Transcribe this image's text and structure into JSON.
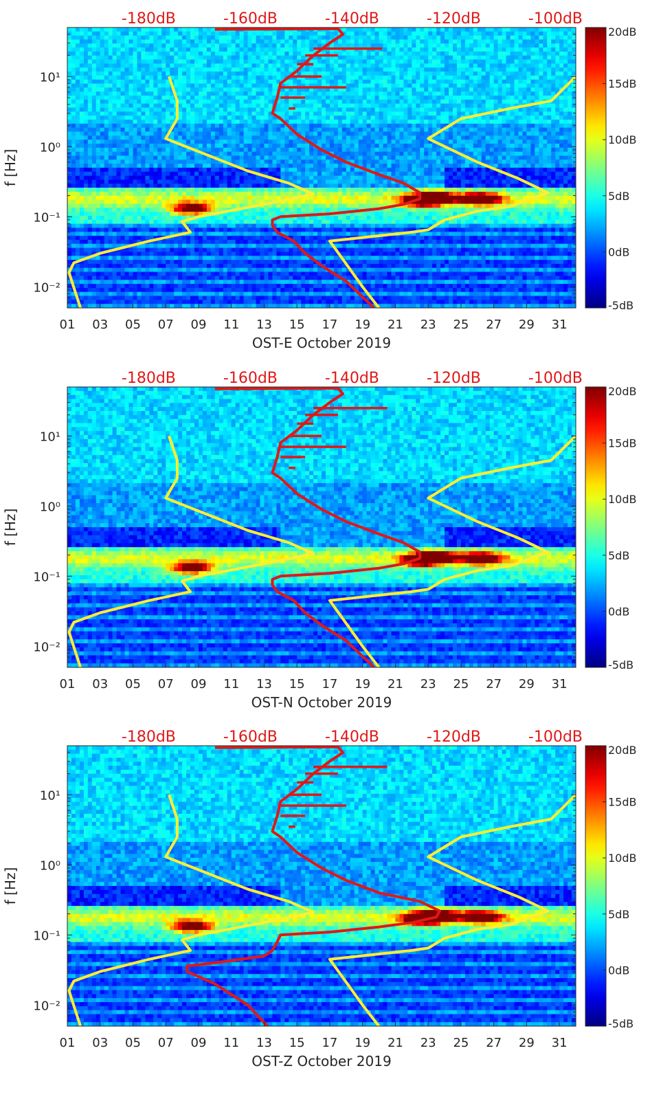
{
  "figure": {
    "colors": {
      "yellow_curve": "#ffee33",
      "red_curve": "#e01818",
      "top_labels": "#e01818",
      "axis": "#262626"
    },
    "colormap_name": "jet"
  },
  "chart_data": [
    {
      "type": "heatmap",
      "panel": "east",
      "title": "",
      "xlabel": "OST-E October 2019",
      "ylabel": "f [Hz]",
      "x_tick_labels": [
        "01",
        "03",
        "05",
        "07",
        "09",
        "11",
        "13",
        "15",
        "17",
        "19",
        "21",
        "23",
        "25",
        "27",
        "29",
        "31"
      ],
      "x_ticks": [
        1,
        3,
        5,
        7,
        9,
        11,
        13,
        15,
        17,
        19,
        21,
        23,
        25,
        27,
        29,
        31
      ],
      "xlim": [
        1,
        32
      ],
      "y_scale": "log",
      "ylim": [
        0.005,
        50
      ],
      "y_tick_labels": [
        "10⁻²",
        "10⁻¹",
        "10⁰",
        "10¹"
      ],
      "y_ticks": [
        0.01,
        0.1,
        1,
        10
      ],
      "top_axis_labels": [
        "-180dB",
        "-160dB",
        "-140dB",
        "-120dB",
        "-100dB"
      ],
      "top_axis_values": [
        -180,
        -160,
        -140,
        -120,
        -100
      ],
      "top_axis_positions_day": [
        8,
        18,
        28,
        38,
        48
      ],
      "colorbar": {
        "labels": [
          "20dB",
          "15dB",
          "10dB",
          "5dB",
          "0dB",
          "-5dB"
        ],
        "values": [
          20,
          15,
          10,
          5,
          0,
          -5
        ],
        "range": [
          -5,
          20
        ]
      },
      "series": [
        {
          "color": "yellow",
          "points": [
            [
              1.8,
              0.005
            ],
            [
              1.1,
              0.016
            ],
            [
              1.4,
              0.022
            ],
            [
              3,
              0.03
            ],
            [
              6,
              0.045
            ],
            [
              8.5,
              0.06
            ],
            [
              8,
              0.085
            ],
            [
              9,
              0.1
            ],
            [
              13,
              0.15
            ],
            [
              16,
              0.21
            ],
            [
              14.5,
              0.3
            ],
            [
              12,
              0.45
            ],
            [
              7,
              1.3
            ],
            [
              7.7,
              2.5
            ],
            [
              7.7,
              4.5
            ],
            [
              7.2,
              10
            ]
          ]
        },
        {
          "color": "yellow",
          "points": [
            [
              20,
              0.005
            ],
            [
              19,
              0.01
            ],
            [
              17,
              0.045
            ],
            [
              22,
              0.06
            ],
            [
              23,
              0.065
            ],
            [
              24,
              0.09
            ],
            [
              26,
              0.12
            ],
            [
              28,
              0.14
            ],
            [
              30.3,
              0.22
            ],
            [
              28.5,
              0.35
            ],
            [
              26,
              0.6
            ],
            [
              23,
              1.3
            ],
            [
              25,
              2.5
            ],
            [
              28,
              3.5
            ],
            [
              30.5,
              4.5
            ],
            [
              32,
              10
            ]
          ]
        },
        {
          "color": "red",
          "points": [
            [
              19.7,
              0.005
            ],
            [
              18,
              0.012
            ],
            [
              16.5,
              0.02
            ],
            [
              15.5,
              0.03
            ],
            [
              14.8,
              0.045
            ],
            [
              13.8,
              0.06
            ],
            [
              13.5,
              0.075
            ],
            [
              13.5,
              0.09
            ],
            [
              14,
              0.1
            ],
            [
              17,
              0.11
            ],
            [
              20,
              0.13
            ],
            [
              21.5,
              0.15
            ],
            [
              22.5,
              0.18
            ],
            [
              22.5,
              0.22
            ],
            [
              21.5,
              0.3
            ],
            [
              20,
              0.4
            ],
            [
              18,
              0.6
            ],
            [
              16.5,
              0.9
            ],
            [
              15,
              1.5
            ],
            [
              14,
              2.5
            ],
            [
              13.5,
              3
            ],
            [
              13.8,
              5
            ],
            [
              14,
              8
            ],
            [
              15,
              12
            ],
            [
              16,
              20
            ],
            [
              17,
              30
            ],
            [
              17.8,
              40
            ],
            [
              17.5,
              48
            ],
            [
              10,
              47
            ]
          ]
        }
      ],
      "red_spikes": [
        [
          14.5,
          3.5,
          14.9
        ],
        [
          14,
          5,
          15.5
        ],
        [
          14,
          7,
          18.0
        ],
        [
          14.5,
          10,
          16.5
        ],
        [
          15,
          15,
          16.0
        ],
        [
          15.5,
          20,
          17.5
        ],
        [
          16,
          25,
          20.2
        ]
      ]
    },
    {
      "type": "heatmap",
      "panel": "north",
      "title": "",
      "xlabel": "OST-N October 2019",
      "ylabel": "f [Hz]",
      "x_tick_labels": [
        "01",
        "03",
        "05",
        "07",
        "09",
        "11",
        "13",
        "15",
        "17",
        "19",
        "21",
        "23",
        "25",
        "27",
        "29",
        "31"
      ],
      "x_ticks": [
        1,
        3,
        5,
        7,
        9,
        11,
        13,
        15,
        17,
        19,
        21,
        23,
        25,
        27,
        29,
        31
      ],
      "xlim": [
        1,
        32
      ],
      "y_scale": "log",
      "ylim": [
        0.005,
        50
      ],
      "y_tick_labels": [
        "10⁻²",
        "10⁻¹",
        "10⁰",
        "10¹"
      ],
      "y_ticks": [
        0.01,
        0.1,
        1,
        10
      ],
      "top_axis_labels": [
        "-180dB",
        "-160dB",
        "-140dB",
        "-120dB",
        "-100dB"
      ],
      "top_axis_values": [
        -180,
        -160,
        -140,
        -120,
        -100
      ],
      "top_axis_positions_day": [
        8,
        18,
        28,
        38,
        48
      ],
      "colorbar": {
        "labels": [
          "20dB",
          "15dB",
          "10dB",
          "5dB",
          "0dB",
          "-5dB"
        ],
        "values": [
          20,
          15,
          10,
          5,
          0,
          -5
        ],
        "range": [
          -5,
          20
        ]
      },
      "series": [
        {
          "color": "yellow",
          "points": [
            [
              1.8,
              0.005
            ],
            [
              1.1,
              0.016
            ],
            [
              1.4,
              0.022
            ],
            [
              3,
              0.03
            ],
            [
              6,
              0.045
            ],
            [
              8.5,
              0.06
            ],
            [
              8,
              0.085
            ],
            [
              9,
              0.1
            ],
            [
              13,
              0.15
            ],
            [
              16,
              0.21
            ],
            [
              14.5,
              0.3
            ],
            [
              12,
              0.45
            ],
            [
              7,
              1.3
            ],
            [
              7.7,
              2.5
            ],
            [
              7.7,
              4.5
            ],
            [
              7.2,
              10
            ]
          ]
        },
        {
          "color": "yellow",
          "points": [
            [
              20,
              0.005
            ],
            [
              19,
              0.01
            ],
            [
              17,
              0.045
            ],
            [
              22,
              0.06
            ],
            [
              23,
              0.065
            ],
            [
              24,
              0.09
            ],
            [
              26,
              0.12
            ],
            [
              28,
              0.14
            ],
            [
              30.3,
              0.22
            ],
            [
              28.5,
              0.35
            ],
            [
              26,
              0.6
            ],
            [
              23,
              1.3
            ],
            [
              25,
              2.5
            ],
            [
              28,
              3.5
            ],
            [
              30.5,
              4.5
            ],
            [
              32,
              10
            ]
          ]
        },
        {
          "color": "red",
          "points": [
            [
              19.7,
              0.005
            ],
            [
              18,
              0.012
            ],
            [
              16.5,
              0.02
            ],
            [
              15.5,
              0.03
            ],
            [
              14.8,
              0.045
            ],
            [
              13.8,
              0.06
            ],
            [
              13.5,
              0.075
            ],
            [
              13.5,
              0.09
            ],
            [
              14,
              0.1
            ],
            [
              17,
              0.11
            ],
            [
              20,
              0.13
            ],
            [
              21.5,
              0.15
            ],
            [
              22.5,
              0.18
            ],
            [
              22.5,
              0.22
            ],
            [
              21.5,
              0.3
            ],
            [
              20,
              0.4
            ],
            [
              18,
              0.6
            ],
            [
              16.5,
              0.9
            ],
            [
              15,
              1.5
            ],
            [
              14,
              2.5
            ],
            [
              13.5,
              3
            ],
            [
              13.8,
              5
            ],
            [
              14,
              8
            ],
            [
              15,
              12
            ],
            [
              16,
              20
            ],
            [
              17,
              30
            ],
            [
              17.8,
              40
            ],
            [
              17.5,
              48
            ],
            [
              10,
              47
            ]
          ]
        }
      ],
      "red_spikes": [
        [
          14.5,
          3.5,
          14.9
        ],
        [
          14,
          5,
          15.5
        ],
        [
          14,
          7,
          18.0
        ],
        [
          14.5,
          10,
          16.5
        ],
        [
          15,
          15,
          16.0
        ],
        [
          15.5,
          20,
          17.5
        ],
        [
          16,
          25,
          20.5
        ]
      ]
    },
    {
      "type": "heatmap",
      "panel": "vertical",
      "title": "",
      "xlabel": "OST-Z October 2019",
      "ylabel": "f [Hz]",
      "x_tick_labels": [
        "01",
        "03",
        "05",
        "07",
        "09",
        "11",
        "13",
        "15",
        "17",
        "19",
        "21",
        "23",
        "25",
        "27",
        "29",
        "31"
      ],
      "x_ticks": [
        1,
        3,
        5,
        7,
        9,
        11,
        13,
        15,
        17,
        19,
        21,
        23,
        25,
        27,
        29,
        31
      ],
      "xlim": [
        1,
        32
      ],
      "y_scale": "log",
      "ylim": [
        0.005,
        50
      ],
      "y_tick_labels": [
        "10⁻²",
        "10⁻¹",
        "10⁰",
        "10¹"
      ],
      "y_ticks": [
        0.01,
        0.1,
        1,
        10
      ],
      "top_axis_labels": [
        "-180dB",
        "-160dB",
        "-140dB",
        "-120dB",
        "-100dB"
      ],
      "top_axis_values": [
        -180,
        -160,
        -140,
        -120,
        -100
      ],
      "top_axis_positions_day": [
        8,
        18,
        28,
        38,
        48
      ],
      "colorbar": {
        "labels": [
          "20dB",
          "15dB",
          "10dB",
          "5dB",
          "0dB",
          "-5dB"
        ],
        "values": [
          20,
          15,
          10,
          5,
          0,
          -5
        ],
        "range": [
          -5,
          20
        ]
      },
      "series": [
        {
          "color": "yellow",
          "points": [
            [
              1.8,
              0.005
            ],
            [
              1.1,
              0.016
            ],
            [
              1.4,
              0.022
            ],
            [
              3,
              0.03
            ],
            [
              6,
              0.045
            ],
            [
              8.5,
              0.06
            ],
            [
              8,
              0.085
            ],
            [
              9,
              0.1
            ],
            [
              13,
              0.15
            ],
            [
              16,
              0.21
            ],
            [
              14.5,
              0.3
            ],
            [
              12,
              0.45
            ],
            [
              7,
              1.3
            ],
            [
              7.7,
              2.5
            ],
            [
              7.7,
              4.5
            ],
            [
              7.2,
              10
            ]
          ]
        },
        {
          "color": "yellow",
          "points": [
            [
              20,
              0.005
            ],
            [
              19,
              0.01
            ],
            [
              17,
              0.045
            ],
            [
              22,
              0.06
            ],
            [
              23,
              0.065
            ],
            [
              24,
              0.09
            ],
            [
              26,
              0.12
            ],
            [
              28,
              0.14
            ],
            [
              30.3,
              0.22
            ],
            [
              28.5,
              0.35
            ],
            [
              26,
              0.6
            ],
            [
              23,
              1.3
            ],
            [
              25,
              2.5
            ],
            [
              28,
              3.5
            ],
            [
              30.5,
              4.5
            ],
            [
              32,
              10
            ]
          ]
        },
        {
          "color": "red",
          "points": [
            [
              13.2,
              0.005
            ],
            [
              12,
              0.01
            ],
            [
              10,
              0.02
            ],
            [
              8.3,
              0.03
            ],
            [
              8.3,
              0.036
            ],
            [
              10,
              0.04
            ],
            [
              13,
              0.05
            ],
            [
              13.5,
              0.06
            ],
            [
              13.8,
              0.08
            ],
            [
              14,
              0.1
            ],
            [
              17,
              0.11
            ],
            [
              20,
              0.13
            ],
            [
              22,
              0.15
            ],
            [
              23.5,
              0.18
            ],
            [
              23.7,
              0.22
            ],
            [
              22.5,
              0.3
            ],
            [
              20,
              0.4
            ],
            [
              18,
              0.6
            ],
            [
              16.5,
              0.9
            ],
            [
              15,
              1.5
            ],
            [
              14,
              2.5
            ],
            [
              13.5,
              3
            ],
            [
              13.8,
              5
            ],
            [
              14,
              8
            ],
            [
              15,
              12
            ],
            [
              16,
              20
            ],
            [
              17,
              30
            ],
            [
              17.8,
              40
            ],
            [
              17.5,
              48
            ],
            [
              10,
              47
            ]
          ]
        }
      ],
      "red_spikes": [
        [
          14.5,
          3.5,
          14.9
        ],
        [
          14,
          5,
          15.5
        ],
        [
          14,
          7,
          18.0
        ],
        [
          14.5,
          10,
          16.5
        ],
        [
          15,
          15,
          16.0
        ],
        [
          15.5,
          20,
          17.5
        ],
        [
          16,
          25,
          20.5
        ]
      ]
    }
  ]
}
